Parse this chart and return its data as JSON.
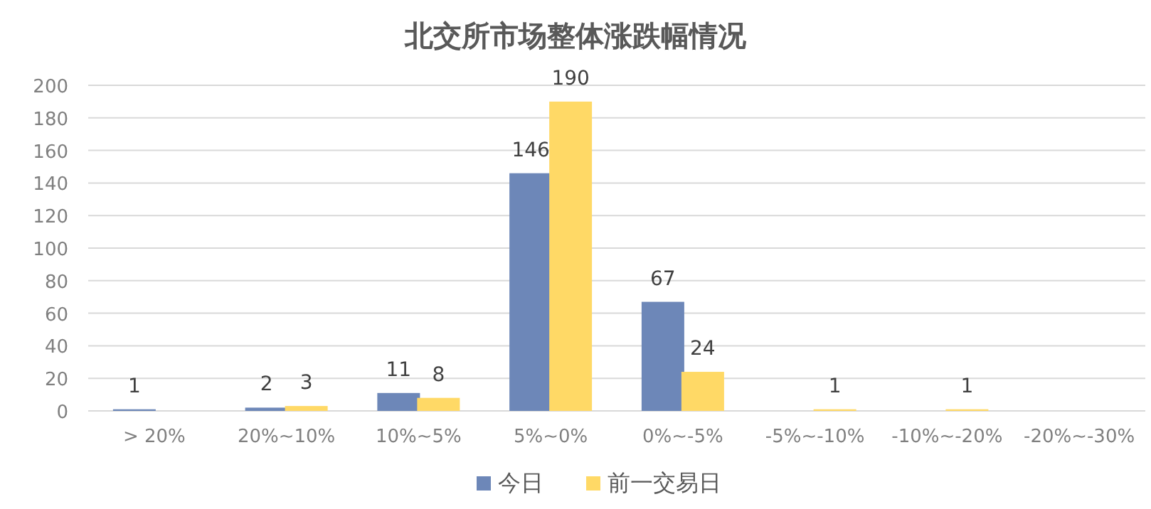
{
  "chart_data": {
    "type": "bar",
    "title": "北交所市场整体涨跌幅情况",
    "categories": [
      "> 20%",
      "20%~10%",
      "10%~5%",
      "5%~0%",
      "0%~-5%",
      "-5%~-10%",
      "-10%~-20%",
      "-20%~-30%"
    ],
    "series": [
      {
        "name": "今日",
        "color": "#6d87b8",
        "values": [
          1,
          2,
          11,
          146,
          67,
          0,
          0,
          0
        ],
        "value_labels": [
          "1",
          "2",
          "11",
          "146",
          "67",
          null,
          null,
          null
        ]
      },
      {
        "name": "前一交易日",
        "color": "#ffd966",
        "values": [
          0,
          3,
          8,
          190,
          24,
          1,
          1,
          0
        ],
        "value_labels": [
          null,
          "3",
          "8",
          "190",
          "24",
          "1",
          "1",
          null
        ]
      }
    ],
    "ylim": [
      0,
      200
    ],
    "yticks": [
      0,
      20,
      40,
      60,
      80,
      100,
      120,
      140,
      160,
      180,
      200
    ],
    "grid": "y",
    "legend": "bottom"
  }
}
